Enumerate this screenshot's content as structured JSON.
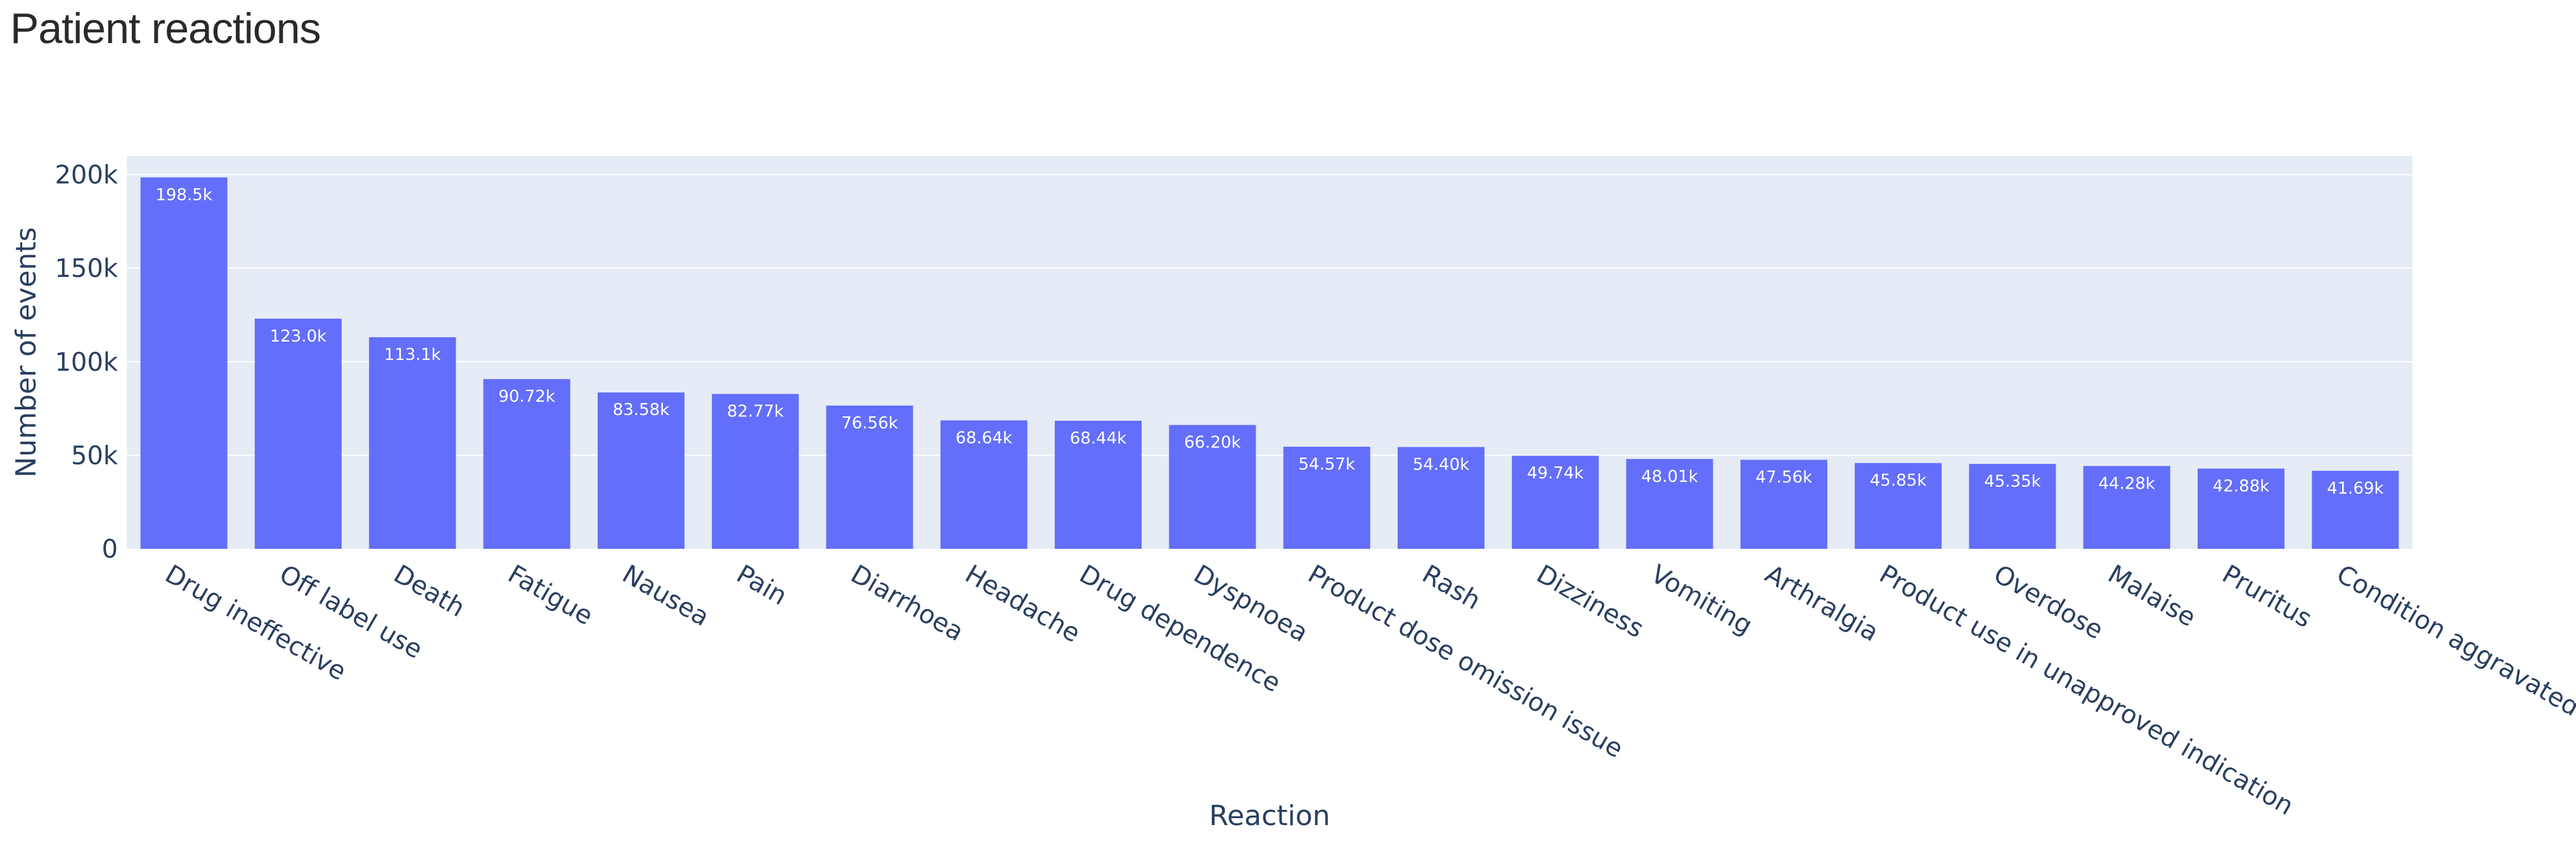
{
  "chart_data": {
    "type": "bar",
    "title": "Patient reactions",
    "xlabel": "Reaction",
    "ylabel": "Number of events",
    "ylim": [
      0,
      210000
    ],
    "yticks": [
      0,
      50000,
      100000,
      150000,
      200000
    ],
    "ytick_labels": [
      "0",
      "50k",
      "100k",
      "150k",
      "200k"
    ],
    "grid": true,
    "colors": {
      "bar": "#636efa",
      "plot_bg": "#e5ecf6",
      "grid": "#ffffff",
      "text": "#2a3f5f"
    },
    "categories": [
      "Drug ineffective",
      "Off label use",
      "Death",
      "Fatigue",
      "Nausea",
      "Pain",
      "Diarrhoea",
      "Headache",
      "Drug dependence",
      "Dyspnoea",
      "Product dose omission issue",
      "Rash",
      "Dizziness",
      "Vomiting",
      "Arthralgia",
      "Product use in unapproved indication",
      "Overdose",
      "Malaise",
      "Pruritus",
      "Condition aggravated"
    ],
    "values": [
      198500,
      123000,
      113100,
      90720,
      83580,
      82770,
      76560,
      68640,
      68440,
      66200,
      54570,
      54400,
      49740,
      48010,
      47560,
      45850,
      45350,
      44280,
      42880,
      41690
    ],
    "value_labels": [
      "198.5k",
      "123.0k",
      "113.1k",
      "90.72k",
      "83.58k",
      "82.77k",
      "76.56k",
      "68.64k",
      "68.44k",
      "66.20k",
      "54.57k",
      "54.40k",
      "49.74k",
      "48.01k",
      "47.56k",
      "45.85k",
      "45.35k",
      "44.28k",
      "42.88k",
      "41.69k"
    ]
  }
}
